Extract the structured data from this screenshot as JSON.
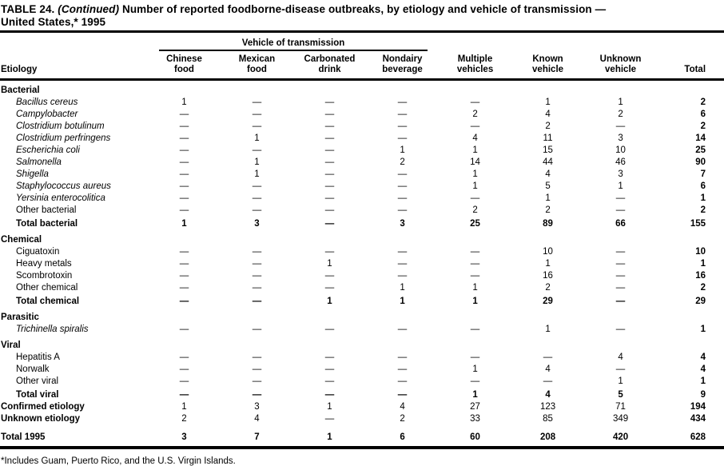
{
  "title": {
    "label": "TABLE 24.",
    "continued": "(Continued)",
    "line1_rest": "Number of reported foodborne-disease outbreaks, by etiology and vehicle of transmission —",
    "line2": "United States,* 1995"
  },
  "table": {
    "spanner_label": "Vehicle of transmission",
    "etiology_header": "Etiology",
    "column_headers": [
      {
        "l1": "Chinese",
        "l2": "food"
      },
      {
        "l1": "Mexican",
        "l2": "food"
      },
      {
        "l1": "Carbonated",
        "l2": "drink"
      },
      {
        "l1": "Nondairy",
        "l2": "beverage"
      },
      {
        "l1": "Multiple",
        "l2": "vehicles"
      },
      {
        "l1": "Known",
        "l2": "vehicle"
      },
      {
        "l1": "Unknown",
        "l2": "vehicle"
      },
      {
        "l1": "",
        "l2": "Total"
      }
    ],
    "rows": [
      {
        "type": "section",
        "label": "Bacterial"
      },
      {
        "type": "item",
        "label": "Bacillus cereus",
        "italic": true,
        "values": [
          "1",
          "—",
          "—",
          "—",
          "—",
          "1",
          "1",
          "2"
        ]
      },
      {
        "type": "item",
        "label": "Campylobacter",
        "italic": true,
        "values": [
          "—",
          "—",
          "—",
          "—",
          "2",
          "4",
          "2",
          "6"
        ]
      },
      {
        "type": "item",
        "label": "Clostridium botulinum",
        "italic": true,
        "values": [
          "—",
          "—",
          "—",
          "—",
          "—",
          "2",
          "—",
          "2"
        ]
      },
      {
        "type": "item",
        "label": "Clostridium perfringens",
        "italic": true,
        "values": [
          "—",
          "1",
          "—",
          "—",
          "4",
          "11",
          "3",
          "14"
        ]
      },
      {
        "type": "item",
        "label": "Escherichia coli",
        "italic": true,
        "values": [
          "—",
          "—",
          "—",
          "1",
          "1",
          "15",
          "10",
          "25"
        ]
      },
      {
        "type": "item",
        "label": "Salmonella",
        "italic": true,
        "values": [
          "—",
          "1",
          "—",
          "2",
          "14",
          "44",
          "46",
          "90"
        ]
      },
      {
        "type": "item",
        "label": "Shigella",
        "italic": true,
        "values": [
          "—",
          "1",
          "—",
          "—",
          "1",
          "4",
          "3",
          "7"
        ]
      },
      {
        "type": "item",
        "label": "Staphylococcus aureus",
        "italic": true,
        "values": [
          "—",
          "—",
          "—",
          "—",
          "1",
          "5",
          "1",
          "6"
        ]
      },
      {
        "type": "item",
        "label": "Yersinia enterocolitica",
        "italic": true,
        "values": [
          "—",
          "—",
          "—",
          "—",
          "—",
          "1",
          "—",
          "1"
        ]
      },
      {
        "type": "item",
        "label": "Other bacterial",
        "italic": false,
        "values": [
          "—",
          "—",
          "—",
          "—",
          "2",
          "2",
          "—",
          "2"
        ]
      },
      {
        "type": "total",
        "label": "Total bacterial",
        "values": [
          "1",
          "3",
          "—",
          "3",
          "25",
          "89",
          "66",
          "155"
        ]
      },
      {
        "type": "section",
        "label": "Chemical"
      },
      {
        "type": "item",
        "label": "Ciguatoxin",
        "italic": false,
        "values": [
          "—",
          "—",
          "—",
          "—",
          "—",
          "10",
          "—",
          "10"
        ]
      },
      {
        "type": "item",
        "label": "Heavy metals",
        "italic": false,
        "values": [
          "—",
          "—",
          "1",
          "—",
          "—",
          "1",
          "—",
          "1"
        ]
      },
      {
        "type": "item",
        "label": "Scombrotoxin",
        "italic": false,
        "values": [
          "—",
          "—",
          "—",
          "—",
          "—",
          "16",
          "—",
          "16"
        ]
      },
      {
        "type": "item",
        "label": "Other chemical",
        "italic": false,
        "values": [
          "—",
          "—",
          "—",
          "1",
          "1",
          "2",
          "—",
          "2"
        ]
      },
      {
        "type": "total",
        "label": "Total chemical",
        "values": [
          "—",
          "—",
          "1",
          "1",
          "1",
          "29",
          "—",
          "29"
        ]
      },
      {
        "type": "section",
        "label": "Parasitic"
      },
      {
        "type": "item",
        "label": "Trichinella spiralis",
        "italic": true,
        "values": [
          "—",
          "—",
          "—",
          "—",
          "—",
          "1",
          "—",
          "1"
        ]
      },
      {
        "type": "section",
        "label": "Viral"
      },
      {
        "type": "item",
        "label": "Hepatitis A",
        "italic": false,
        "values": [
          "—",
          "—",
          "—",
          "—",
          "—",
          "—",
          "4",
          "4"
        ]
      },
      {
        "type": "item",
        "label": "Norwalk",
        "italic": false,
        "values": [
          "—",
          "—",
          "—",
          "—",
          "1",
          "4",
          "—",
          "4"
        ]
      },
      {
        "type": "item",
        "label": "Other viral",
        "italic": false,
        "values": [
          "—",
          "—",
          "—",
          "—",
          "—",
          "—",
          "1",
          "1"
        ]
      },
      {
        "type": "total",
        "label": "Total viral",
        "values": [
          "—",
          "—",
          "—",
          "—",
          "1",
          "4",
          "5",
          "9"
        ]
      },
      {
        "type": "summary",
        "label": "Confirmed etiology",
        "values": [
          "1",
          "3",
          "1",
          "4",
          "27",
          "123",
          "71",
          "194"
        ]
      },
      {
        "type": "summary",
        "label": "Unknown etiology",
        "values": [
          "2",
          "4",
          "—",
          "2",
          "33",
          "85",
          "349",
          "434"
        ]
      },
      {
        "type": "grand",
        "label": "Total 1995",
        "values": [
          "3",
          "7",
          "1",
          "6",
          "60",
          "208",
          "420",
          "628"
        ]
      }
    ]
  },
  "footnote": "*Includes Guam, Puerto Rico, and the U.S. Virgin Islands."
}
